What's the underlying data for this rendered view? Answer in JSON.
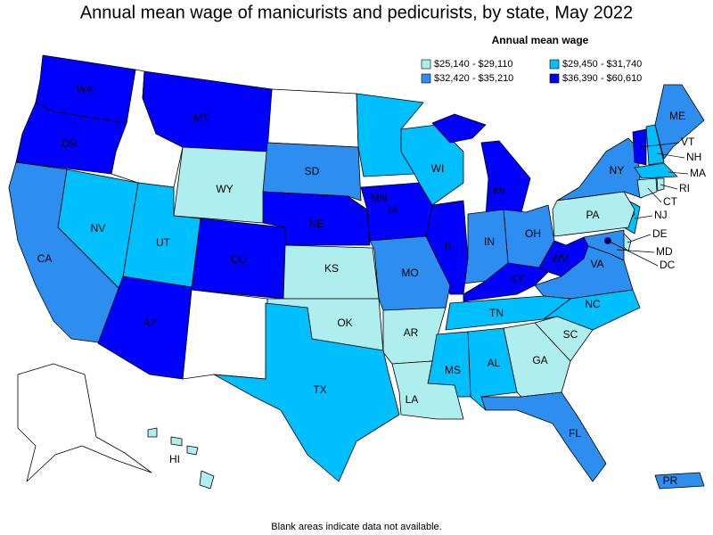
{
  "title": "Annual mean wage of manicurists and pedicurists, by state, May 2022",
  "legend": {
    "title": "Annual mean wage",
    "items": [
      {
        "label": "$25,140 - $29,110",
        "color": "#aeeeee"
      },
      {
        "label": "$29,450 - $31,740",
        "color": "#00bfff"
      },
      {
        "label": "$32,420 - $35,210",
        "color": "#2e8ef0"
      },
      {
        "label": "$36,390 - $60,610",
        "color": "#0000ff"
      }
    ]
  },
  "states": [
    {
      "label": "WA",
      "level": 3
    },
    {
      "label": "OR",
      "level": 3
    },
    {
      "label": "MT",
      "level": 3
    },
    {
      "label": "WY",
      "level": 0
    },
    {
      "label": "SD",
      "level": 2
    },
    {
      "label": "MN",
      "level": 1
    },
    {
      "label": "WI",
      "level": 1
    },
    {
      "label": "MI",
      "level": 3
    },
    {
      "label": "NY",
      "level": 2
    },
    {
      "label": "ME",
      "level": 2
    },
    {
      "label": "VT",
      "level": 3
    },
    {
      "label": "NH",
      "level": 1
    },
    {
      "label": "MA",
      "level": 1
    },
    {
      "label": "RI",
      "level": 0
    },
    {
      "label": "CT",
      "level": 0
    },
    {
      "label": "NJ",
      "level": 1
    },
    {
      "label": "PA",
      "level": 0
    },
    {
      "label": "DE",
      "level": 0
    },
    {
      "label": "MD",
      "level": 2
    },
    {
      "label": "DC",
      "level": 3
    },
    {
      "label": "OH",
      "level": 2
    },
    {
      "label": "IN",
      "level": 2
    },
    {
      "label": "IL",
      "level": 3
    },
    {
      "label": "IA",
      "level": 3
    },
    {
      "label": "NE",
      "level": 3
    },
    {
      "label": "CO",
      "level": 3
    },
    {
      "label": "UT",
      "level": 1
    },
    {
      "label": "NV",
      "level": 1
    },
    {
      "label": "CA",
      "level": 2
    },
    {
      "label": "AZ",
      "level": 3
    },
    {
      "label": "KS",
      "level": 0
    },
    {
      "label": "MO",
      "level": 2
    },
    {
      "label": "KY",
      "level": 3
    },
    {
      "label": "WV",
      "level": 3
    },
    {
      "label": "VA",
      "level": 2
    },
    {
      "label": "NC",
      "level": 1
    },
    {
      "label": "TN",
      "level": 1
    },
    {
      "label": "OK",
      "level": 0
    },
    {
      "label": "AR",
      "level": 0
    },
    {
      "label": "SC",
      "level": 0
    },
    {
      "label": "GA",
      "level": 0
    },
    {
      "label": "AL",
      "level": 1
    },
    {
      "label": "MS",
      "level": 1
    },
    {
      "label": "LA",
      "level": 0
    },
    {
      "label": "TX",
      "level": 1
    },
    {
      "label": "FL",
      "level": 2
    },
    {
      "label": "HI",
      "level": 0
    },
    {
      "label": "PR",
      "level": 2
    }
  ],
  "footnote": "Blank areas indicate data not available."
}
